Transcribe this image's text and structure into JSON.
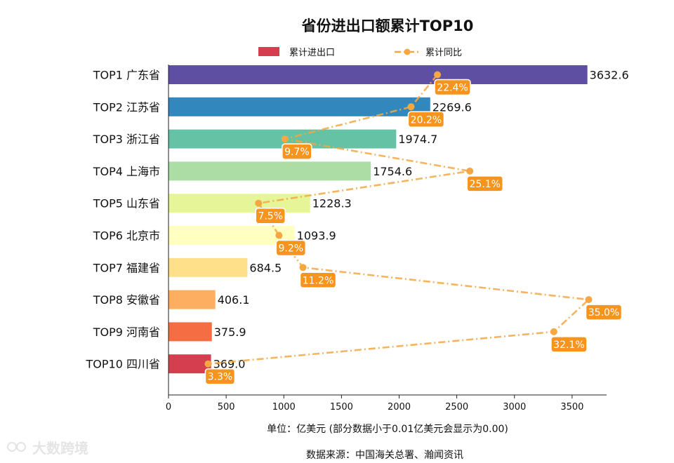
{
  "chart_data": {
    "type": "bar",
    "orientation": "horizontal",
    "title": "省份进出口额累计TOP10",
    "categories": [
      "TOP1 广东省",
      "TOP2 江苏省",
      "TOP3 浙江省",
      "TOP4 上海市",
      "TOP5 山东省",
      "TOP6 北京市",
      "TOP7 福建省",
      "TOP8 安徽省",
      "TOP9 河南省",
      "TOP10 四川省"
    ],
    "series": [
      {
        "name": "累计进出口",
        "type": "bar",
        "values": [
          3632.6,
          2269.6,
          1974.7,
          1754.6,
          1228.3,
          1093.9,
          684.5,
          406.1,
          375.9,
          369.0
        ],
        "labels": [
          "3632.6",
          "2269.6",
          "1974.7",
          "1754.6",
          "1228.3",
          "1093.9",
          "684.5",
          "406.1",
          "375.9",
          "369.0"
        ]
      },
      {
        "name": "累计同比",
        "type": "line",
        "values": [
          22.4,
          20.2,
          9.7,
          25.1,
          7.5,
          9.2,
          11.2,
          35.0,
          32.1,
          3.3
        ],
        "labels": [
          "22.4%",
          "20.2%",
          "9.7%",
          "25.1%",
          "7.5%",
          "9.2%",
          "11.2%",
          "35.0%",
          "32.1%",
          "3.3%"
        ]
      }
    ],
    "bar_colors": [
      "#5e4fa2",
      "#3288bd",
      "#66c2a5",
      "#abdda4",
      "#e6f598",
      "#ffffbf",
      "#fee08b",
      "#fdae61",
      "#f46d43",
      "#d53e4f"
    ],
    "line_color": "#f4a742",
    "label_box_color": "#f7941d",
    "xlim": [
      0,
      3800
    ],
    "xticks": [
      0,
      500,
      1000,
      1500,
      2000,
      2500,
      3000,
      3500
    ],
    "line_scale_max": 36.5,
    "xlabel": "单位：亿美元  (部分数据小于0.01亿美元会显示为0.00)",
    "source": "数据来源：中国海关总署、瀚闻资讯",
    "legend": [
      "累计进出口",
      "累计同比"
    ],
    "legend_position": "top-center"
  },
  "watermark": "大数跨境"
}
